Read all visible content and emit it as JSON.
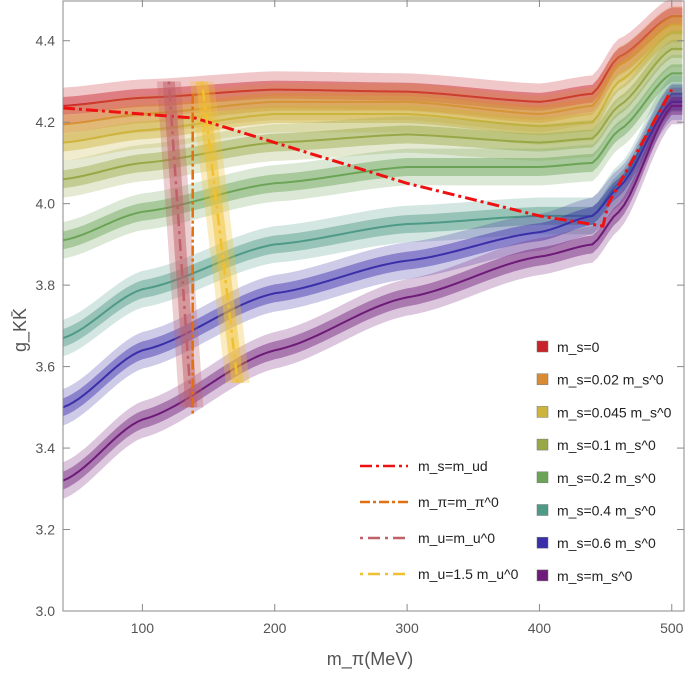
{
  "chart_data": {
    "type": "line",
    "xlabel": "m_π(MeV)",
    "ylabel": "g_KK̄",
    "xlim": [
      40,
      510
    ],
    "ylim": [
      3.0,
      4.5
    ],
    "xticks": [
      100,
      200,
      300,
      400,
      500
    ],
    "yticks": [
      3.0,
      3.2,
      3.4,
      3.6,
      3.8,
      4.0,
      4.2,
      4.4
    ],
    "x": [
      40,
      100,
      200,
      300,
      400,
      440,
      460,
      500
    ],
    "series": [
      {
        "name": "m_s=0",
        "color": "#c8232a",
        "values": [
          4.24,
          4.26,
          4.28,
          4.275,
          4.25,
          4.27,
          4.36,
          4.46
        ]
      },
      {
        "name": "m_s=0.02 m_s^0",
        "color": "#d98a35",
        "values": [
          4.195,
          4.22,
          4.25,
          4.25,
          4.22,
          4.24,
          4.34,
          4.44
        ]
      },
      {
        "name": "m_s=0.045 m_s^0",
        "color": "#cdb43c",
        "values": [
          4.15,
          4.18,
          4.22,
          4.22,
          4.19,
          4.2,
          4.3,
          4.42
        ]
      },
      {
        "name": "m_s=0.1 m_s^0",
        "color": "#98a846",
        "values": [
          4.06,
          4.1,
          4.15,
          4.17,
          4.15,
          4.16,
          4.24,
          4.38
        ]
      },
      {
        "name": "m_s=0.2 m_s^0",
        "color": "#6ba456",
        "values": [
          3.91,
          3.98,
          4.05,
          4.09,
          4.09,
          4.1,
          4.18,
          4.32
        ]
      },
      {
        "name": "m_s=0.4 m_s^0",
        "color": "#4f9a86",
        "values": [
          3.67,
          3.79,
          3.9,
          3.95,
          3.97,
          3.97,
          4.05,
          4.27
        ]
      },
      {
        "name": "m_s=0.6 m_s^0",
        "color": "#3a2fa8",
        "values": [
          3.5,
          3.64,
          3.78,
          3.86,
          3.93,
          3.97,
          4.04,
          4.25
        ]
      },
      {
        "name": "m_s=m_s^0",
        "color": "#6e1a78",
        "values": [
          3.32,
          3.47,
          3.64,
          3.77,
          3.87,
          3.9,
          3.98,
          4.24
        ]
      }
    ],
    "lines": [
      {
        "name": "m_s=m_ud",
        "color": "#ee1111",
        "points": [
          [
            40,
            4.235
          ],
          [
            140,
            4.21
          ],
          [
            300,
            4.05
          ],
          [
            400,
            3.97
          ],
          [
            448,
            3.945
          ],
          [
            452,
            4.0
          ],
          [
            500,
            4.28
          ]
        ]
      },
      {
        "name": "m_π=m_π^0",
        "color": "#e07010",
        "points": [
          [
            138,
            4.27
          ],
          [
            138,
            3.48
          ]
        ]
      },
      {
        "name": "m_u=m_u^0",
        "color": "#c06068",
        "points": [
          [
            120,
            4.3
          ],
          [
            137,
            3.5
          ]
        ]
      },
      {
        "name": "m_u=1.5 m_u^0",
        "color": "#f0c030",
        "points": [
          [
            145,
            4.3
          ],
          [
            172,
            3.56
          ]
        ]
      }
    ],
    "legend_placement": "bottom-right"
  }
}
